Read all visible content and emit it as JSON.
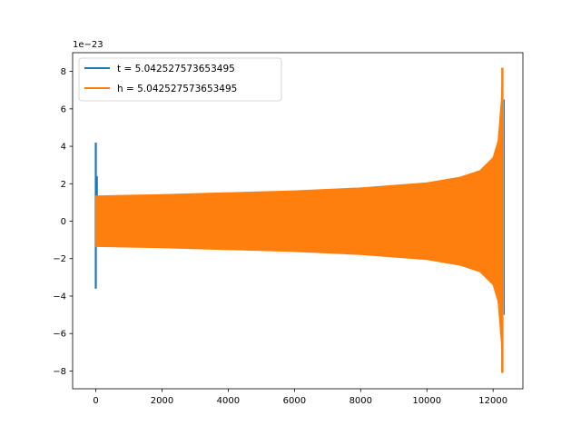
{
  "chart_data": {
    "type": "line",
    "title": "",
    "xlabel": "",
    "ylabel": "",
    "y_offset_text": "1e−23",
    "xlim": [
      -700,
      12900
    ],
    "ylim": [
      -8.95,
      9.0
    ],
    "xticks": [
      0,
      2000,
      4000,
      6000,
      8000,
      10000,
      12000
    ],
    "xtick_labels": [
      "0",
      "2000",
      "4000",
      "6000",
      "8000",
      "10000",
      "12000"
    ],
    "yticks": [
      -8,
      -6,
      -4,
      -2,
      0,
      2,
      4,
      6,
      8
    ],
    "ytick_labels": [
      "−8",
      "−6",
      "−4",
      "−2",
      "0",
      "2",
      "4",
      "6",
      "8"
    ],
    "grid": false,
    "legend_position": "upper-left",
    "series": [
      {
        "name": "t = 5.042527573653495",
        "color": "#1f77b4",
        "description_points": [
          {
            "x": 0,
            "y_max": 4.2,
            "y_min": -3.6
          },
          {
            "x": 12280,
            "y_max": 6.5,
            "y_min": -8.1
          }
        ]
      },
      {
        "name": "h = 5.042527573653495",
        "color": "#ff7f0e",
        "envelope": {
          "x": [
            0,
            2000,
            4000,
            6000,
            8000,
            10000,
            11000,
            11600,
            12000,
            12150,
            12250,
            12280
          ],
          "upper": [
            1.35,
            1.42,
            1.52,
            1.62,
            1.78,
            2.05,
            2.35,
            2.7,
            3.4,
            4.3,
            6.5,
            8.2
          ],
          "lower": [
            -1.35,
            -1.42,
            -1.52,
            -1.62,
            -1.78,
            -2.05,
            -2.35,
            -2.7,
            -3.4,
            -4.3,
            -6.5,
            -8.1
          ]
        }
      }
    ]
  }
}
